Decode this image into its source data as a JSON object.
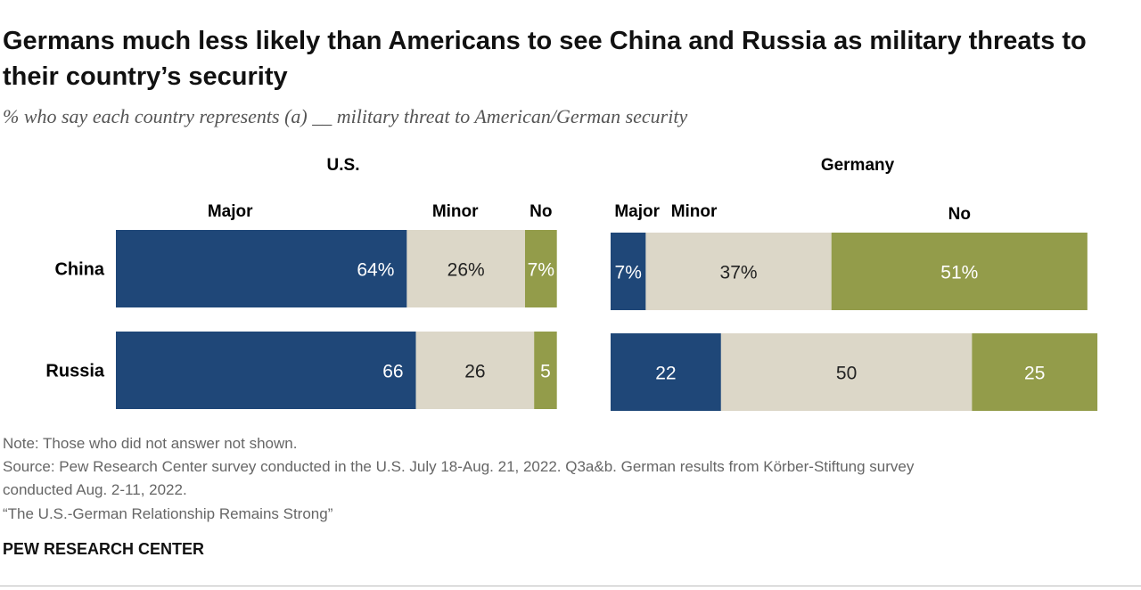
{
  "title": "Germans much less likely than Americans to see China and Russia as military threats to their country’s security",
  "subtitle": "% who say each country represents (a) __ military threat to American/German security",
  "colors": {
    "Major": "#1f4778",
    "Minor": "#dcd7c8",
    "No": "#939c4a"
  },
  "chart_data": [
    {
      "type": "bar",
      "orientation": "horizontal",
      "stacked": true,
      "title": "U.S.",
      "categories": [
        "China",
        "Russia"
      ],
      "series": [
        {
          "name": "Major",
          "values": [
            64,
            66
          ],
          "labels": [
            "64%",
            "66"
          ]
        },
        {
          "name": "Minor",
          "values": [
            26,
            26
          ],
          "labels": [
            "26%",
            "26"
          ]
        },
        {
          "name": "No",
          "values": [
            7,
            5
          ],
          "labels": [
            "7%",
            "5"
          ]
        }
      ]
    },
    {
      "type": "bar",
      "orientation": "horizontal",
      "stacked": true,
      "title": "Germany",
      "categories": [
        "China",
        "Russia"
      ],
      "series": [
        {
          "name": "Major",
          "values": [
            7,
            22
          ],
          "labels": [
            "7%",
            "22"
          ]
        },
        {
          "name": "Minor",
          "values": [
            37,
            50
          ],
          "labels": [
            "37%",
            "50"
          ]
        },
        {
          "name": "No",
          "values": [
            51,
            25
          ],
          "labels": [
            "51%",
            "25"
          ]
        }
      ]
    }
  ],
  "notes": {
    "note": "Note: Those who did not answer not shown.",
    "source1": "Source: Pew Research Center survey conducted in the U.S. July 18-Aug. 21, 2022. Q3a&b. German results from Körber-Stiftung survey",
    "source2": "conducted Aug. 2-11, 2022.",
    "report": "“The U.S.-German Relationship Remains Strong”"
  },
  "brand": "PEW RESEARCH CENTER"
}
